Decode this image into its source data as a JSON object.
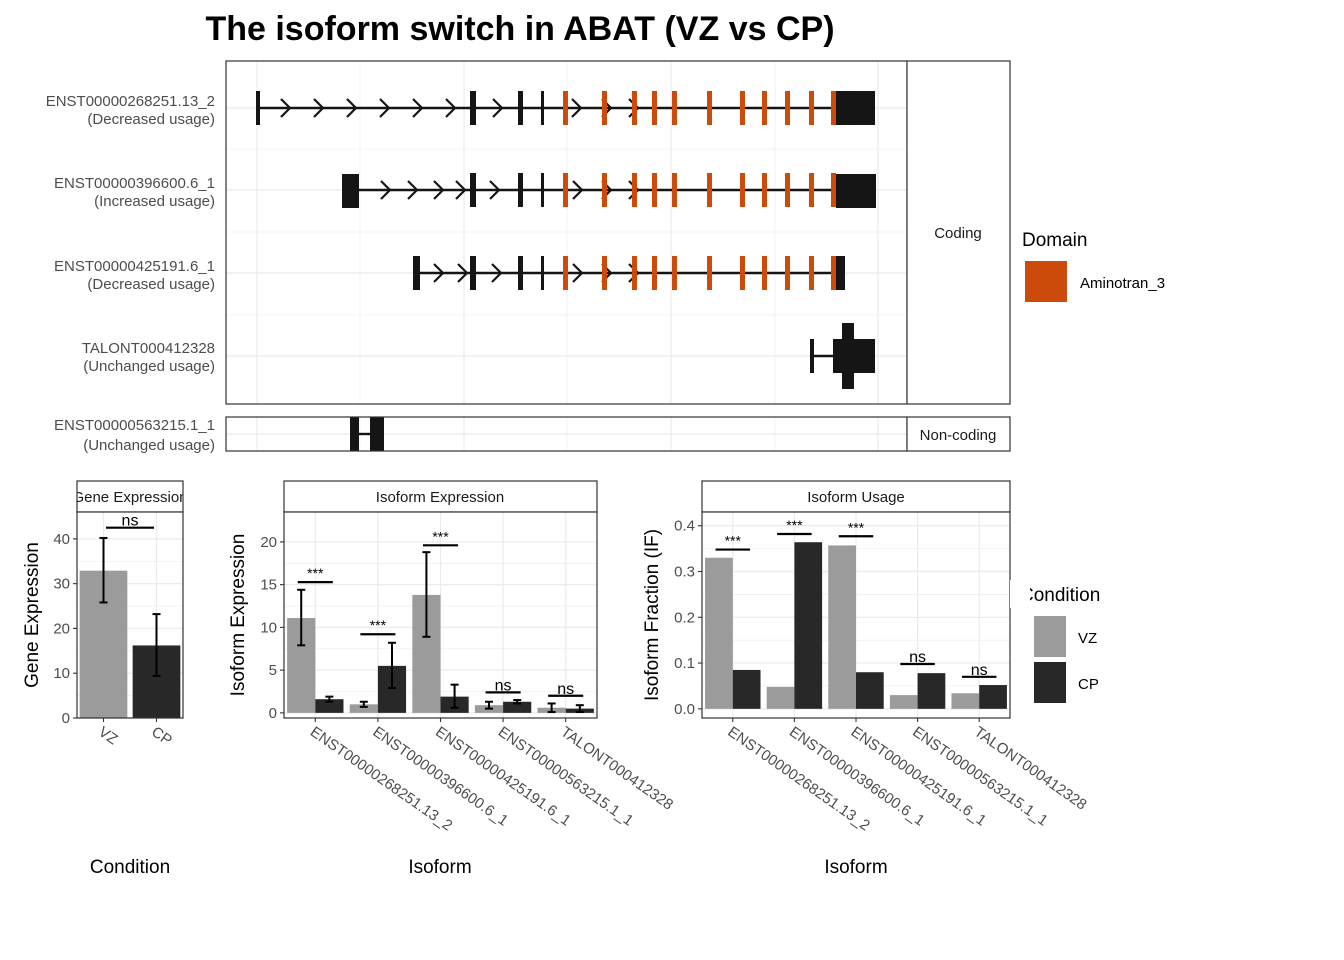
{
  "title": "The isoform switch in ABAT (VZ vs CP)",
  "colors": {
    "domain": "#CC4A0A",
    "exon": "#151515",
    "vz": "#9B9B9B",
    "cp": "#282828",
    "grid": "#EBEBEB",
    "panel_border": "#333333",
    "strip_fill": "#FFFFFF"
  },
  "isoform_structure": {
    "facets": [
      "Coding",
      "Non-coding"
    ],
    "legend": {
      "title": "Domain",
      "items": [
        {
          "label": "Aminotran_3",
          "color": "#CC4A0A"
        }
      ]
    },
    "transcripts": [
      {
        "id": "ENST00000268251.13_2",
        "usage": "(Decreased usage)",
        "facet": "Coding"
      },
      {
        "id": "ENST00000396600.6_1",
        "usage": "(Increased usage)",
        "facet": "Coding"
      },
      {
        "id": "ENST00000425191.6_1",
        "usage": "(Decreased usage)",
        "facet": "Coding"
      },
      {
        "id": "TALONT000412328",
        "usage": "(Unchanged usage)",
        "facet": "Coding"
      },
      {
        "id": "ENST00000563215.1_1",
        "usage": "(Unchanged usage)",
        "facet": "Non-coding"
      }
    ]
  },
  "chart_data": [
    {
      "type": "bar",
      "strip": "Gene Expression",
      "xlabel": "Condition",
      "ylabel": "Gene Expression",
      "categories": [
        "VZ",
        "CP"
      ],
      "values": [
        32.9,
        16.2
      ],
      "error_low": [
        25.8,
        9.4
      ],
      "error_high": [
        40.2,
        23.2
      ],
      "ylim": [
        0,
        46
      ],
      "yticks": [
        0,
        10,
        20,
        30,
        40
      ],
      "significance": [
        {
          "label": "ns",
          "y": 42.5
        }
      ]
    },
    {
      "type": "bar",
      "strip": "Isoform Expression",
      "xlabel": "Isoform",
      "ylabel": "Isoform Expression",
      "categories": [
        "ENST00000268251.13_2",
        "ENST00000396600.6_1",
        "ENST00000425191.6_1",
        "ENST00000563215.1_1",
        "TALONT000412328"
      ],
      "series": [
        {
          "name": "VZ",
          "values": [
            11.1,
            1.0,
            13.8,
            0.9,
            0.6
          ],
          "error_low": [
            7.9,
            0.7,
            8.9,
            0.5,
            0.1
          ],
          "error_high": [
            14.4,
            1.3,
            18.8,
            1.3,
            1.1
          ]
        },
        {
          "name": "CP",
          "values": [
            1.6,
            5.5,
            1.9,
            1.3,
            0.5
          ],
          "error_low": [
            1.3,
            2.9,
            0.6,
            1.1,
            0.1
          ],
          "error_high": [
            1.9,
            8.2,
            3.3,
            1.5,
            0.9
          ]
        }
      ],
      "ylim": [
        -0.6,
        23.5
      ],
      "yticks": [
        0,
        5,
        10,
        15,
        20
      ],
      "significance": [
        {
          "label": "***",
          "y": 15.3
        },
        {
          "label": "***",
          "y": 9.2
        },
        {
          "label": "***",
          "y": 19.6
        },
        {
          "label": "ns",
          "y": 2.4
        },
        {
          "label": "ns",
          "y": 2.0
        }
      ]
    },
    {
      "type": "bar",
      "strip": "Isoform Usage",
      "xlabel": "Isoform",
      "ylabel": "Isoform Fraction (IF)",
      "categories": [
        "ENST00000268251.13_2",
        "ENST00000396600.6_1",
        "ENST00000425191.6_1",
        "ENST00000563215.1_1",
        "TALONT000412328"
      ],
      "series": [
        {
          "name": "VZ",
          "values": [
            0.33,
            0.048,
            0.357,
            0.03,
            0.034
          ]
        },
        {
          "name": "CP",
          "values": [
            0.085,
            0.364,
            0.08,
            0.078,
            0.052
          ]
        }
      ],
      "ylim": [
        -0.02,
        0.43
      ],
      "yticks": [
        0.0,
        0.1,
        0.2,
        0.3,
        0.4
      ],
      "significance": [
        {
          "label": "***",
          "y": 0.348
        },
        {
          "label": "***",
          "y": 0.382
        },
        {
          "label": "***",
          "y": 0.377
        },
        {
          "label": "ns",
          "y": 0.098
        },
        {
          "label": "ns",
          "y": 0.07
        }
      ]
    }
  ],
  "condition_legend": {
    "title": "Condition",
    "items": [
      {
        "label": "VZ",
        "color": "#9B9B9B"
      },
      {
        "label": "CP",
        "color": "#282828"
      }
    ]
  }
}
